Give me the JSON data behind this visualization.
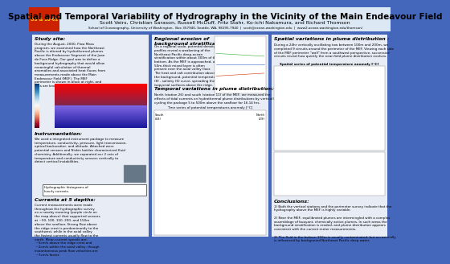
{
  "bg_color": "#4466bb",
  "header_bg": "#dde8f5",
  "panel_bg": "#e8edf5",
  "title": "Spatial and Temporal Variability of Hydrography in the Vicinity of the Main Endeavour Field",
  "authors": "Scott Veirs, Christian Sarason, Russell McDuff, Fritz Stahr, Ko-ichi Nakamura, and Richard Thomson",
  "affiliation": "School of Oceanography, University of Washington,  Box 357940, Seattle, WA, 98195-7940  |  scott@ocean.washington.edu  |  www2.ocean.washington.edu/thomson/",
  "badge_text": "OS & 10-02",
  "badge_bg": "#cc2200",
  "badge_fg": "#ffdd00",
  "col1_title": "Study site:",
  "col1_instr_title": "Instrumentation:",
  "col1_study_body": "During the August, 2000, Flow Mass\nprogram, we examined how the Northeast\nPacific is altered by hydrothermal plumes\nabove the Endeavour Segment of the Juan\nde Fuca Ridge. Our goal was to define a\nbackground hydrography that would allow\nmeaningful calculation of thermal\nanomalies and associated heat fluxes from\nmeasurements made above the Main\nEndeavour Field (MEF). The MEF\nperimeter is shown in black at right, and\ndots are known vents.",
  "col1_instr_body": "We used a integrated instrument package to measure\ntemperature, conductivity, pressure, light transmission,\noptical backscatter, and altitude. Attached were\npotential sensors and Niskin bottles characterized fluid\nchemistry. Additionally, we separated our 2 sets of\ntemperature and conductivity sensors vertically to\ndetect vertical instabilities.",
  "col1_box_title": "Hydrographic histograms of\nhourly currents.",
  "col1_currents_title": "Currents at 5 depths:",
  "col1_currents_body": "Current measurements were made\nthroughout the hydrographic survey\non a nearby mooring (purple circle on\nthe map above) that supported sensors\nat ~50, 100, 150, 200, and 150m\nabove the seafloor. Strong flow above\nthe ridge crest is predominantly to the\nsouthwest, while in the axial valley\nthe fastest currents usually flow to the\nnorth. Mean current speeds are:\n ~5cm/s above the ridge crest and\n ~2cm/s within the axial valley, though\ninstantaneous peak flow velocities are\n ~7cm/s faster.",
  "col2_title1": "Regional erosion of\nbackground stratification:",
  "col2_body1": "On a regional scale, potential density\nprofiles reveal a weakening of the\nNortheast Pacific deep-ocean\nstratification within about 300m of the\nbottom. As the MEF is approached, a\n50m-thick mixed layer is often\npresent near the axial valley floor.\nThe heat and salt contribution above\nthe background, potential temperature\n(θ) - salinity (S) curve, spreading the\nisopycnal surfaces above the ridge.",
  "col2_title2": "Temporal variations in plume distribution:",
  "col2_body2": "North (station 26) and south (station 11) of the MEF, we measured the\neffects of tidal currents on hydrothermal plume distributions by vertically\ncycling the package 5 to 500m above the seafloor for 16.14 hrs.",
  "col2_fig_title": "Time series of potential temperatures anomaly [°C]",
  "col2_fig_south": "South\n(43)",
  "col2_fig_north": "North\n(29)",
  "col3_title1": "Spatial variations in plume distribution :",
  "col3_body1": "During a 24hr vertically oscillating tow between 100m and 200m, we\ncompleted 9 circuits around the perimeter of the MEF. Viewing each side\nof the MEF perimeter \"wall\" from a southwest perspective, successive\ncircuits reveal how quickly the near-field plume distribution evolves.",
  "col3_fig_title": "Spatial series of potential temperature anomaly [°C]",
  "col3_conc_title": "Conclusions:",
  "col3_conc_body": "1) Both the vertical stations and the perimeter survey indicate that the\nhydrography above the MEF is highly variable.\n\n2) Near the MEF, equilibrated plumes are intermingled with a complex\nassemblage of buoyant, chemically active plumes. In such areas the\nbackground stratification is eroded, and plume distribution appears\nconsistent with the current meter measurements.\n\n3) The fluid in the bottom 150m is usually contaminated, but occasionally\nis influenced by background Northeast Pacific deep water.",
  "title_fontsize": 7.5,
  "authors_fontsize": 4.5,
  "affil_fontsize": 3.0,
  "section_title_fontsize": 4.5,
  "body_fontsize": 3.0
}
